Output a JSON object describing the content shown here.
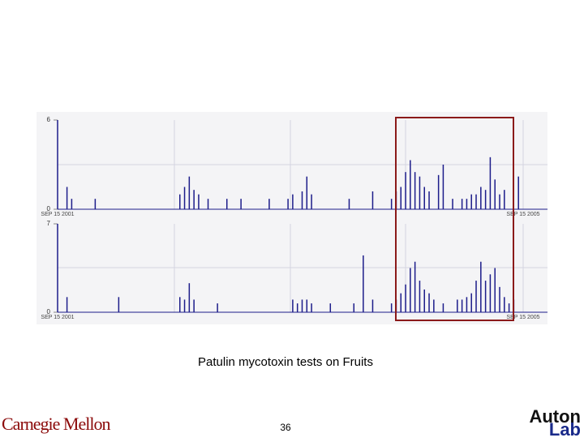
{
  "chart_data": [
    {
      "type": "bar",
      "color": "#1c1c8a",
      "ylim": [
        0,
        6
      ],
      "yticks": [
        0,
        6
      ],
      "categories": [
        "SEP 15 2001",
        null,
        null,
        null,
        null,
        null,
        null,
        null,
        null,
        null,
        null,
        null,
        null,
        null,
        null,
        null,
        null,
        null,
        null,
        null,
        null,
        null,
        null,
        null,
        null,
        null,
        null,
        null,
        null,
        null,
        null,
        null,
        null,
        null,
        null,
        null,
        null,
        null,
        null,
        null,
        null,
        null,
        null,
        null,
        null,
        null,
        null,
        null,
        null,
        null,
        null,
        null,
        null,
        null,
        null,
        null,
        null,
        null,
        null,
        null,
        null,
        null,
        null,
        null,
        null,
        null,
        null,
        null,
        null,
        null,
        null,
        null,
        null,
        null,
        null,
        null,
        null,
        null,
        null,
        null,
        null,
        null,
        null,
        null,
        null,
        null,
        null,
        null,
        null,
        null,
        null,
        null,
        null,
        null,
        null,
        null,
        null,
        null,
        null,
        "SEP 15 2005"
      ],
      "values": [
        6,
        0,
        1.5,
        0.7,
        0,
        0,
        0,
        0,
        0.7,
        0,
        0,
        0,
        0,
        0,
        0,
        0,
        0,
        0,
        0,
        0,
        0,
        0,
        0,
        0,
        0,
        0,
        1,
        1.5,
        2.2,
        1.3,
        1,
        0,
        0.7,
        0,
        0,
        0,
        0.7,
        0,
        0,
        0.7,
        0,
        0,
        0,
        0,
        0,
        0.7,
        0,
        0,
        0,
        0.7,
        1,
        0,
        1.2,
        2.2,
        1,
        0,
        0,
        0,
        0,
        0,
        0,
        0,
        0.7,
        0,
        0,
        0,
        0,
        1.2,
        0,
        0,
        0,
        0.7,
        1.2,
        1.5,
        2.5,
        3.3,
        2.5,
        2.2,
        1.5,
        1.2,
        0,
        2.3,
        3,
        0,
        0.7,
        0,
        0.7,
        0.7,
        1,
        1,
        1.5,
        1.3,
        3.5,
        2,
        1,
        1.3,
        0,
        0,
        2.2,
        0
      ]
    },
    {
      "type": "bar",
      "color": "#1c1c8a",
      "ylim": [
        0,
        7
      ],
      "yticks": [
        0,
        7
      ],
      "categories": [
        "SEP 15 2001",
        null,
        null,
        null,
        null,
        null,
        null,
        null,
        null,
        null,
        null,
        null,
        null,
        null,
        null,
        null,
        null,
        null,
        null,
        null,
        null,
        null,
        null,
        null,
        null,
        null,
        null,
        null,
        null,
        null,
        null,
        null,
        null,
        null,
        null,
        null,
        null,
        null,
        null,
        null,
        null,
        null,
        null,
        null,
        null,
        null,
        null,
        null,
        null,
        null,
        null,
        null,
        null,
        null,
        null,
        null,
        null,
        null,
        null,
        null,
        null,
        null,
        null,
        null,
        null,
        null,
        null,
        null,
        null,
        null,
        null,
        null,
        null,
        null,
        null,
        null,
        null,
        null,
        null,
        null,
        null,
        null,
        null,
        null,
        null,
        null,
        null,
        null,
        null,
        null,
        null,
        null,
        null,
        null,
        null,
        null,
        null,
        null,
        null,
        "SEP 15 2005"
      ],
      "values": [
        7,
        0,
        1.2,
        0,
        0,
        0,
        0,
        0,
        0,
        0,
        0,
        0,
        0,
        1.2,
        0,
        0,
        0,
        0,
        0,
        0,
        0,
        0,
        0,
        0,
        0,
        0,
        1.2,
        1,
        2.3,
        1,
        0,
        0,
        0,
        0,
        0.7,
        0,
        0,
        0,
        0,
        0,
        0,
        0,
        0,
        0,
        0,
        0,
        0,
        0,
        0,
        0,
        1,
        0.7,
        1,
        1,
        0.7,
        0,
        0,
        0,
        0.7,
        0,
        0,
        0,
        0,
        0.7,
        0,
        4.5,
        0,
        1,
        0,
        0,
        0,
        0.7,
        1,
        1.5,
        2.2,
        3.5,
        4,
        2.5,
        1.8,
        1.5,
        1,
        0,
        0.7,
        0,
        0,
        1,
        1,
        1.2,
        1.5,
        2.5,
        4,
        2.5,
        3,
        3.5,
        2,
        1.2,
        0.7,
        1,
        0,
        0
      ]
    }
  ],
  "slide": {
    "caption": "Patulin mycotoxin tests on Fruits",
    "footer_left": "Carnegie Mellon",
    "page_number": "36",
    "logo_top": "Auton",
    "logo_bottom": "Lab"
  }
}
